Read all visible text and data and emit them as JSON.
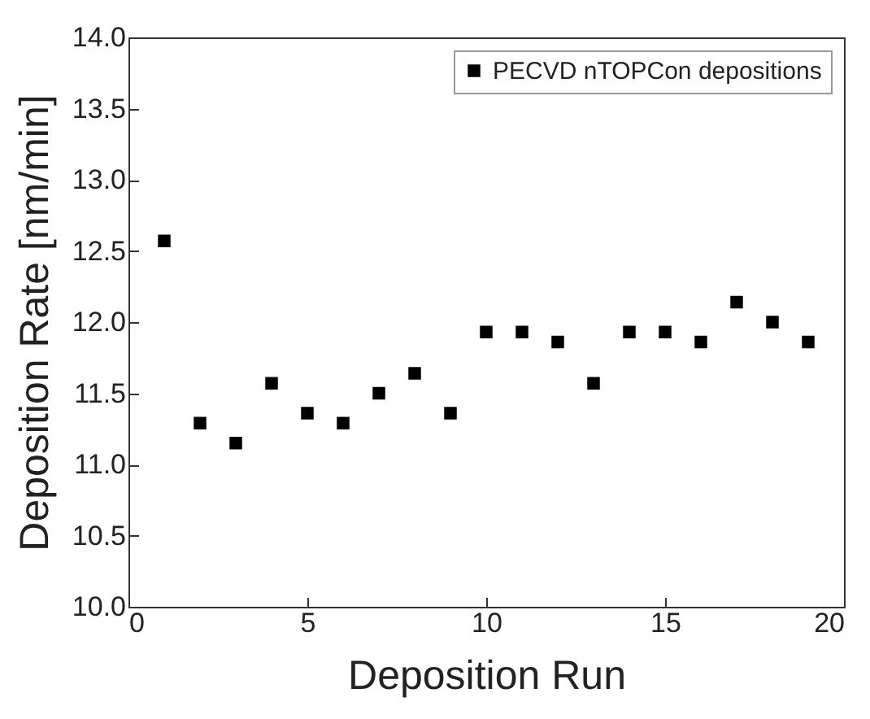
{
  "chart_data": {
    "type": "scatter",
    "xlabel": "Deposition Run",
    "ylabel": "Deposition Rate [nm/min]",
    "x": [
      1,
      2,
      3,
      4,
      5,
      6,
      7,
      8,
      9,
      10,
      11,
      12,
      13,
      14,
      15,
      16,
      17,
      18,
      19
    ],
    "series": [
      {
        "name": "PECVD nTOPCon depositions",
        "color": "#000000",
        "values": [
          12.57,
          11.29,
          11.15,
          11.57,
          11.36,
          11.29,
          11.5,
          11.64,
          11.36,
          11.93,
          11.93,
          11.86,
          11.57,
          11.93,
          11.93,
          11.86,
          12.14,
          12.0,
          11.86
        ]
      }
    ],
    "xlim": [
      0,
      20
    ],
    "xticks": [
      0,
      5,
      10,
      15,
      20
    ],
    "ylim": [
      10,
      14
    ],
    "yticks": [
      {
        "value": 10,
        "label": "10.0"
      },
      10.5,
      {
        "value": 11,
        "label": "11.0"
      },
      11.5,
      {
        "value": 12,
        "label": "12.0"
      },
      12.5,
      {
        "value": 13,
        "label": "13.0"
      },
      13.5,
      {
        "value": 14,
        "label": "14.0"
      }
    ],
    "marker": "square",
    "legend": "top right",
    "grid": false
  }
}
